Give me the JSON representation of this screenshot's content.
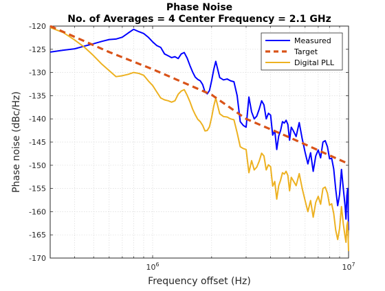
{
  "chart_data": {
    "type": "line",
    "title": [
      "Phase Noise",
      "No. of Averages = 4 Center Frequency = 2.1 GHz"
    ],
    "xlabel": "Frequency offset (Hz)",
    "ylabel": "Phase noise (dBc/Hz)",
    "xscale": "log",
    "xlim": [
      300000,
      10000000
    ],
    "ylim": [
      -170,
      -120
    ],
    "grid": true,
    "legend_position": "top-right",
    "y_ticks": [
      -120,
      -125,
      -130,
      -135,
      -140,
      -145,
      -150,
      -155,
      -160,
      -165,
      -170
    ],
    "x_major_ticks": [
      {
        "value": 1000000,
        "base": "10",
        "exponent": "6"
      },
      {
        "value": 10000000,
        "base": "10",
        "exponent": "7"
      }
    ],
    "series": [
      {
        "name": "Measured",
        "color": "#0000ff",
        "style": "solid",
        "points": [
          [
            300000,
            -125.6
          ],
          [
            350000,
            -125.2
          ],
          [
            400000,
            -124.9
          ],
          [
            450000,
            -124.3
          ],
          [
            500000,
            -123.8
          ],
          [
            550000,
            -123.3
          ],
          [
            600000,
            -122.9
          ],
          [
            650000,
            -122.8
          ],
          [
            700000,
            -122.4
          ],
          [
            750000,
            -121.5
          ],
          [
            800000,
            -120.7
          ],
          [
            850000,
            -121.2
          ],
          [
            900000,
            -121.6
          ],
          [
            950000,
            -122.4
          ],
          [
            1000000,
            -123.4
          ],
          [
            1050000,
            -124.2
          ],
          [
            1100000,
            -124.6
          ],
          [
            1150000,
            -126.0
          ],
          [
            1200000,
            -126.4
          ],
          [
            1250000,
            -126.8
          ],
          [
            1300000,
            -126.6
          ],
          [
            1350000,
            -127.0
          ],
          [
            1400000,
            -126.0
          ],
          [
            1450000,
            -125.7
          ],
          [
            1500000,
            -126.9
          ],
          [
            1550000,
            -128.5
          ],
          [
            1600000,
            -129.9
          ],
          [
            1650000,
            -131.0
          ],
          [
            1700000,
            -131.5
          ],
          [
            1750000,
            -131.8
          ],
          [
            1800000,
            -132.6
          ],
          [
            1850000,
            -134.2
          ],
          [
            1900000,
            -134.6
          ],
          [
            1950000,
            -133.9
          ],
          [
            2000000,
            -131.8
          ],
          [
            2050000,
            -129.4
          ],
          [
            2100000,
            -127.6
          ],
          [
            2200000,
            -131.1
          ],
          [
            2300000,
            -131.6
          ],
          [
            2400000,
            -131.4
          ],
          [
            2500000,
            -131.8
          ],
          [
            2600000,
            -132.0
          ],
          [
            2700000,
            -135.0
          ],
          [
            2800000,
            -140.6
          ],
          [
            2900000,
            -141.4
          ],
          [
            3000000,
            -141.8
          ],
          [
            3100000,
            -135.3
          ],
          [
            3200000,
            -138.5
          ],
          [
            3300000,
            -140.0
          ],
          [
            3400000,
            -139.4
          ],
          [
            3500000,
            -137.9
          ],
          [
            3600000,
            -136.1
          ],
          [
            3700000,
            -137.0
          ],
          [
            3800000,
            -140.0
          ],
          [
            3900000,
            -138.8
          ],
          [
            4000000,
            -139.2
          ],
          [
            4100000,
            -143.5
          ],
          [
            4200000,
            -142.5
          ],
          [
            4300000,
            -146.6
          ],
          [
            4400000,
            -143.7
          ],
          [
            4500000,
            -142.5
          ],
          [
            4600000,
            -140.6
          ],
          [
            4700000,
            -140.9
          ],
          [
            4800000,
            -140.3
          ],
          [
            4900000,
            -141.2
          ],
          [
            5000000,
            -144.6
          ],
          [
            5100000,
            -141.8
          ],
          [
            5200000,
            -142.4
          ],
          [
            5400000,
            -143.8
          ],
          [
            5600000,
            -140.8
          ],
          [
            5800000,
            -144.3
          ],
          [
            6000000,
            -147.2
          ],
          [
            6200000,
            -149.7
          ],
          [
            6400000,
            -147.3
          ],
          [
            6600000,
            -151.3
          ],
          [
            6800000,
            -148.0
          ],
          [
            7000000,
            -146.7
          ],
          [
            7200000,
            -148.4
          ],
          [
            7400000,
            -145.0
          ],
          [
            7600000,
            -144.7
          ],
          [
            7800000,
            -146.0
          ],
          [
            8000000,
            -148.6
          ],
          [
            8200000,
            -148.5
          ],
          [
            8400000,
            -150.8
          ],
          [
            8600000,
            -155.2
          ],
          [
            8800000,
            -158.7
          ],
          [
            9000000,
            -156.3
          ],
          [
            9200000,
            -150.9
          ],
          [
            9400000,
            -155.0
          ],
          [
            9600000,
            -158.8
          ],
          [
            9700000,
            -161.6
          ],
          [
            9800000,
            -156.6
          ],
          [
            9900000,
            -155.0
          ],
          [
            10000000,
            -164.0
          ]
        ]
      },
      {
        "name": "Target",
        "color": "#d95319",
        "style": "dashed",
        "points": [
          [
            300000,
            -120.0
          ],
          [
            600000,
            -125.6
          ],
          [
            1000000,
            -129.3
          ],
          [
            2000000,
            -134.8
          ],
          [
            3000000,
            -140.0
          ],
          [
            5000000,
            -144.0
          ],
          [
            10000000,
            -149.7
          ]
        ]
      },
      {
        "name": "Digital PLL",
        "color": "#edb120",
        "style": "solid",
        "points": [
          [
            300000,
            -120.3
          ],
          [
            350000,
            -121.4
          ],
          [
            400000,
            -123.0
          ],
          [
            450000,
            -124.6
          ],
          [
            500000,
            -126.4
          ],
          [
            550000,
            -128.2
          ],
          [
            600000,
            -129.6
          ],
          [
            650000,
            -130.9
          ],
          [
            700000,
            -130.7
          ],
          [
            750000,
            -130.4
          ],
          [
            800000,
            -130.0
          ],
          [
            850000,
            -130.2
          ],
          [
            900000,
            -130.6
          ],
          [
            950000,
            -131.8
          ],
          [
            1000000,
            -132.8
          ],
          [
            1050000,
            -134.2
          ],
          [
            1100000,
            -135.5
          ],
          [
            1150000,
            -135.9
          ],
          [
            1200000,
            -136.1
          ],
          [
            1250000,
            -136.4
          ],
          [
            1300000,
            -136.1
          ],
          [
            1350000,
            -134.7
          ],
          [
            1400000,
            -134.0
          ],
          [
            1450000,
            -133.7
          ],
          [
            1500000,
            -134.9
          ],
          [
            1550000,
            -136.3
          ],
          [
            1600000,
            -137.9
          ],
          [
            1650000,
            -139.1
          ],
          [
            1700000,
            -140.1
          ],
          [
            1750000,
            -140.6
          ],
          [
            1800000,
            -141.4
          ],
          [
            1850000,
            -142.6
          ],
          [
            1900000,
            -142.5
          ],
          [
            1950000,
            -141.7
          ],
          [
            2000000,
            -139.7
          ],
          [
            2050000,
            -137.3
          ],
          [
            2100000,
            -135.5
          ],
          [
            2200000,
            -138.9
          ],
          [
            2300000,
            -139.5
          ],
          [
            2400000,
            -139.6
          ],
          [
            2500000,
            -140.0
          ],
          [
            2600000,
            -140.2
          ],
          [
            2700000,
            -143.0
          ],
          [
            2800000,
            -146.0
          ],
          [
            2900000,
            -146.4
          ],
          [
            3000000,
            -146.6
          ],
          [
            3100000,
            -151.6
          ],
          [
            3200000,
            -149.0
          ],
          [
            3300000,
            -151.0
          ],
          [
            3400000,
            -150.4
          ],
          [
            3500000,
            -149.1
          ],
          [
            3600000,
            -147.4
          ],
          [
            3700000,
            -148.0
          ],
          [
            3800000,
            -151.0
          ],
          [
            3900000,
            -149.9
          ],
          [
            4000000,
            -150.3
          ],
          [
            4100000,
            -154.5
          ],
          [
            4200000,
            -153.5
          ],
          [
            4300000,
            -157.3
          ],
          [
            4400000,
            -154.4
          ],
          [
            4500000,
            -153.2
          ],
          [
            4600000,
            -151.6
          ],
          [
            4700000,
            -151.9
          ],
          [
            4800000,
            -151.3
          ],
          [
            4900000,
            -152.2
          ],
          [
            5000000,
            -155.5
          ],
          [
            5100000,
            -152.6
          ],
          [
            5200000,
            -153.2
          ],
          [
            5400000,
            -154.4
          ],
          [
            5600000,
            -151.8
          ],
          [
            5800000,
            -155.0
          ],
          [
            6000000,
            -157.6
          ],
          [
            6200000,
            -160.0
          ],
          [
            6400000,
            -157.6
          ],
          [
            6600000,
            -161.2
          ],
          [
            6800000,
            -158.0
          ],
          [
            7000000,
            -156.7
          ],
          [
            7200000,
            -158.4
          ],
          [
            7400000,
            -155.0
          ],
          [
            7600000,
            -154.7
          ],
          [
            7800000,
            -156.0
          ],
          [
            8000000,
            -158.6
          ],
          [
            8200000,
            -158.3
          ],
          [
            8400000,
            -160.4
          ],
          [
            8600000,
            -164.0
          ],
          [
            8800000,
            -166.0
          ],
          [
            9000000,
            -163.6
          ],
          [
            9200000,
            -158.9
          ],
          [
            9400000,
            -162.6
          ],
          [
            9600000,
            -165.4
          ],
          [
            9700000,
            -166.6
          ],
          [
            9800000,
            -163.0
          ],
          [
            9900000,
            -162.2
          ],
          [
            10000000,
            -168.5
          ]
        ]
      }
    ]
  }
}
